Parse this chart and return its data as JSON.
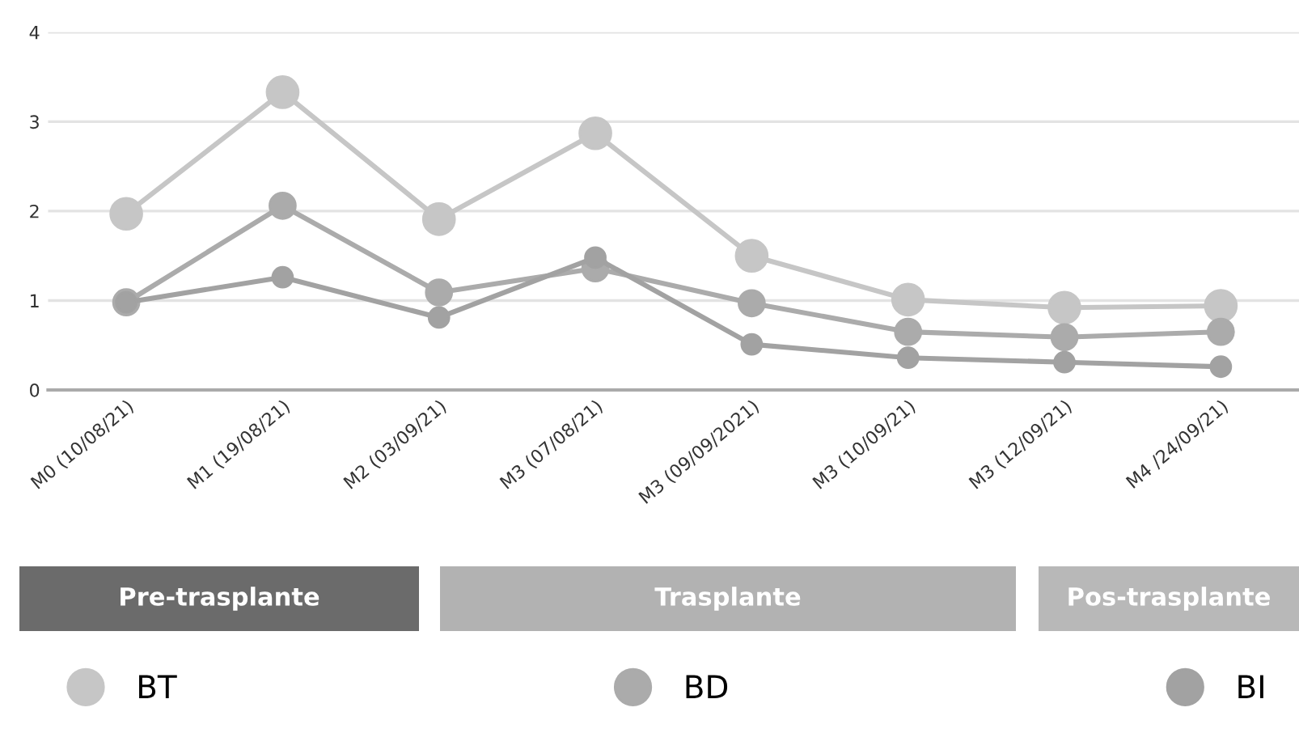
{
  "chart_data": {
    "type": "line",
    "categories": [
      "M0 (10/08/21)",
      "M1 (19/08/21)",
      "M2 (03/09/21)",
      "M3 (07/08/21)",
      "M3 (09/09/2021)",
      "M3 (10/09/21)",
      "M3 (12/09/21)",
      "M4 /24/09/21)"
    ],
    "series": [
      {
        "name": "BT",
        "color": "#c6c6c6",
        "values": [
          1.97,
          3.33,
          1.91,
          2.87,
          1.5,
          1.01,
          0.92,
          0.94
        ]
      },
      {
        "name": "BD",
        "color": "#ababab",
        "values": [
          0.98,
          2.06,
          1.09,
          1.36,
          0.97,
          0.65,
          0.59,
          0.65
        ]
      },
      {
        "name": "BI",
        "color": "#a2a2a2",
        "values": [
          0.98,
          1.26,
          0.81,
          1.48,
          0.51,
          0.36,
          0.31,
          0.26
        ]
      }
    ],
    "ylim": [
      0,
      4
    ],
    "yticks": [
      0,
      1,
      2,
      3,
      4
    ],
    "grid": "y",
    "legend": "bottom",
    "marker": "circle",
    "line_style": "solid",
    "annotations": [
      "Pre-trasplante",
      "Trasplante",
      "Pos-trasplante"
    ]
  }
}
